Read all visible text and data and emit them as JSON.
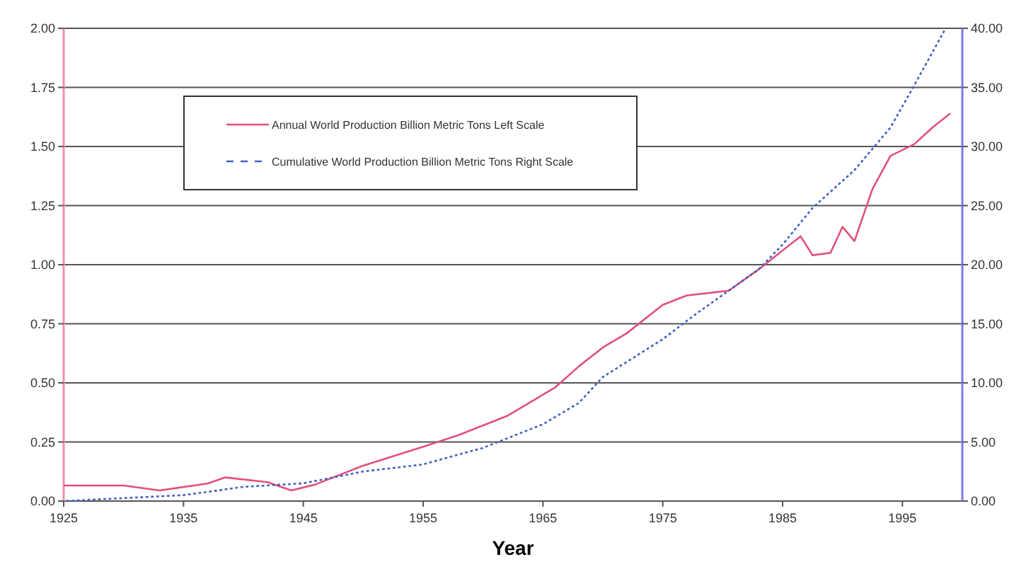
{
  "chart_data": {
    "type": "line",
    "xlabel": "Year",
    "legend": "top",
    "grid": "y",
    "xlim": [
      1925,
      2000
    ],
    "xticks": [
      1925,
      1935,
      1945,
      1955,
      1965,
      1975,
      1985,
      1995
    ],
    "ylim": [
      0,
      2
    ],
    "yticks": [
      {
        "value": 0,
        "label": "0.00"
      },
      {
        "value": 0.25,
        "label": "0.25"
      },
      {
        "value": 0.5,
        "label": "0.50"
      },
      {
        "value": 0.75,
        "label": "0.75"
      },
      {
        "value": 1,
        "label": "1.00"
      },
      {
        "value": 1.25,
        "label": "1.25"
      },
      {
        "value": 1.5,
        "label": "1.50"
      },
      {
        "value": 1.75,
        "label": "1.75"
      },
      {
        "value": 2,
        "label": "2.00"
      }
    ],
    "y2lim": [
      0,
      40
    ],
    "y2ticks": [
      {
        "value": 0,
        "label": "0.00"
      },
      {
        "value": 5,
        "label": "5.00"
      },
      {
        "value": 10,
        "label": "10.00"
      },
      {
        "value": 15,
        "label": "15.00"
      },
      {
        "value": 20,
        "label": "20.00"
      },
      {
        "value": 25,
        "label": "25.00"
      },
      {
        "value": 30,
        "label": "30.00"
      },
      {
        "value": 35,
        "label": "35.00"
      },
      {
        "value": 40,
        "label": "40.00"
      }
    ],
    "series": [
      {
        "name": "Annual World Production Billion Metric Tons Left Scale",
        "color": "#e0507a",
        "line_style": "solid",
        "x": [
          1925,
          1930,
          1933,
          1937,
          1938.5,
          1942,
          1944,
          1946,
          1950,
          1955,
          1958,
          1962,
          1966,
          1968,
          1970,
          1972,
          1975,
          1977,
          1980.5,
          1983,
          1985.5,
          1986.5,
          1987.5,
          1989,
          1990,
          1991,
          1992.5,
          1994,
          1996,
          1997.5,
          1999
        ],
        "values": [
          0.066,
          0.066,
          0.045,
          0.074,
          0.1,
          0.08,
          0.045,
          0.07,
          0.15,
          0.23,
          0.28,
          0.36,
          0.48,
          0.57,
          0.65,
          0.71,
          0.83,
          0.87,
          0.89,
          0.98,
          1.08,
          1.12,
          1.04,
          1.05,
          1.16,
          1.1,
          1.32,
          1.46,
          1.51,
          1.58,
          1.64
        ]
      },
      {
        "name": "Cumulative World Production  Billion Metric Tons  Right Scale",
        "color": "#4060c0",
        "line_style": "dashed",
        "axis": "y2",
        "x": [
          1925,
          1935,
          1940,
          1945,
          1950,
          1955,
          1960,
          1965,
          1968,
          1970,
          1975,
          1978,
          1980.5,
          1983,
          1985,
          1987.5,
          1991,
          1994,
          1996,
          1998.5
        ],
        "values": [
          0,
          0.5,
          1.2,
          1.5,
          2.5,
          3.1,
          4.5,
          6.5,
          8.3,
          10.5,
          13.7,
          16,
          17.8,
          19.6,
          21.7,
          24.8,
          28,
          31.6,
          35.2,
          39.8
        ]
      }
    ]
  }
}
